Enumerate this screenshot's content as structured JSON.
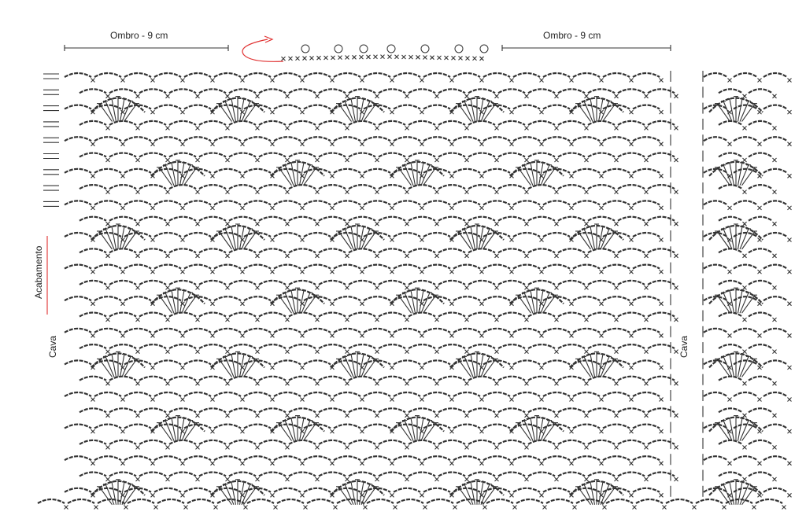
{
  "labels": {
    "shoulder_left": "Ombro - 9 cm",
    "shoulder_right": "Ombro - 9 cm",
    "finishing": "Acabamento",
    "armhole_left": "Cava",
    "armhole_right": "Cava"
  },
  "colors": {
    "ink": "#333333",
    "arrow": "#e03030"
  },
  "chart_symbols": [
    "chain-arc",
    "single-crochet-x",
    "double-crochet-fan",
    "picot"
  ]
}
